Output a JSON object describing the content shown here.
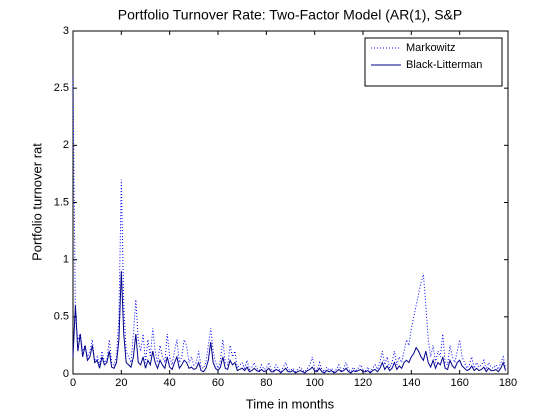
{
  "chart_data": {
    "type": "line",
    "title": "Portfolio Turnover Rate: Two-Factor Model (AR(1), S&P",
    "xlabel": "Time in months",
    "ylabel": "Portfolio turnover rat",
    "xlim": [
      0,
      180
    ],
    "xticks": [
      0,
      20,
      40,
      60,
      80,
      100,
      120,
      140,
      160,
      180
    ],
    "ylim": [
      0,
      3
    ],
    "yticks": [
      0,
      0.5,
      1,
      1.5,
      2,
      2.5,
      3
    ],
    "legend": "northeast",
    "x": [
      0,
      1,
      2,
      3,
      4,
      5,
      6,
      7,
      8,
      9,
      10,
      11,
      12,
      13,
      14,
      15,
      16,
      17,
      18,
      19,
      20,
      21,
      22,
      23,
      24,
      25,
      26,
      27,
      28,
      29,
      30,
      31,
      32,
      33,
      34,
      35,
      36,
      37,
      38,
      39,
      40,
      41,
      42,
      43,
      44,
      45,
      46,
      47,
      48,
      49,
      50,
      51,
      52,
      53,
      54,
      55,
      56,
      57,
      58,
      59,
      60,
      61,
      62,
      63,
      64,
      65,
      66,
      67,
      68,
      69,
      70,
      71,
      72,
      73,
      74,
      75,
      76,
      77,
      78,
      79,
      80,
      81,
      82,
      83,
      84,
      85,
      86,
      87,
      88,
      89,
      90,
      91,
      92,
      93,
      94,
      95,
      96,
      97,
      98,
      99,
      100,
      101,
      102,
      103,
      104,
      105,
      106,
      107,
      108,
      109,
      110,
      111,
      112,
      113,
      114,
      115,
      116,
      117,
      118,
      119,
      120,
      121,
      122,
      123,
      124,
      125,
      126,
      127,
      128,
      129,
      130,
      131,
      132,
      133,
      134,
      135,
      136,
      137,
      138,
      139,
      140,
      141,
      142,
      143,
      144,
      145,
      146,
      147,
      148,
      149,
      150,
      151,
      152,
      153,
      154,
      155,
      156,
      157,
      158,
      159,
      160,
      161,
      162,
      163,
      164,
      165,
      166,
      167,
      168,
      169,
      170,
      171,
      172,
      173,
      174,
      175,
      176,
      177,
      178,
      179
    ],
    "series": [
      {
        "name": "Markowitz",
        "color": "#0000ff",
        "style": "dotted",
        "values": [
          2.6,
          0.5,
          0.3,
          0.35,
          0.2,
          0.25,
          0.15,
          0.2,
          0.3,
          0.1,
          0.15,
          0.08,
          0.2,
          0.1,
          0.12,
          0.3,
          0.1,
          0.08,
          0.15,
          0.5,
          1.7,
          0.6,
          0.2,
          0.15,
          0.1,
          0.35,
          0.65,
          0.3,
          0.2,
          0.35,
          0.1,
          0.3,
          0.15,
          0.4,
          0.2,
          0.1,
          0.25,
          0.15,
          0.1,
          0.35,
          0.15,
          0.08,
          0.2,
          0.3,
          0.1,
          0.15,
          0.3,
          0.25,
          0.1,
          0.15,
          0.08,
          0.1,
          0.2,
          0.06,
          0.05,
          0.1,
          0.25,
          0.4,
          0.2,
          0.1,
          0.05,
          0.12,
          0.3,
          0.1,
          0.08,
          0.25,
          0.15,
          0.2,
          0.05,
          0.08,
          0.1,
          0.05,
          0.12,
          0.04,
          0.06,
          0.1,
          0.05,
          0.03,
          0.08,
          0.04,
          0.05,
          0.1,
          0.04,
          0.03,
          0.08,
          0.05,
          0.02,
          0.06,
          0.1,
          0.04,
          0.03,
          0.05,
          0.02,
          0.04,
          0.06,
          0.03,
          0.02,
          0.05,
          0.08,
          0.15,
          0.05,
          0.03,
          0.1,
          0.04,
          0.02,
          0.06,
          0.03,
          0.05,
          0.02,
          0.04,
          0.08,
          0.03,
          0.05,
          0.1,
          0.04,
          0.02,
          0.06,
          0.03,
          0.05,
          0.08,
          0.04,
          0.03,
          0.06,
          0.02,
          0.05,
          0.08,
          0.04,
          0.1,
          0.2,
          0.08,
          0.15,
          0.05,
          0.1,
          0.2,
          0.08,
          0.15,
          0.1,
          0.2,
          0.3,
          0.25,
          0.4,
          0.5,
          0.6,
          0.7,
          0.8,
          0.87,
          0.6,
          0.3,
          0.15,
          0.25,
          0.1,
          0.2,
          0.15,
          0.35,
          0.1,
          0.08,
          0.25,
          0.15,
          0.1,
          0.2,
          0.3,
          0.15,
          0.1,
          0.05,
          0.08,
          0.15,
          0.05,
          0.1,
          0.06,
          0.08,
          0.12,
          0.04,
          0.1,
          0.06,
          0.05,
          0.08,
          0.04,
          0.1,
          0.15,
          0.05
        ]
      },
      {
        "name": "Black-Litterman",
        "color": "#00008b",
        "style": "solid",
        "values": [
          0.15,
          0.6,
          0.2,
          0.35,
          0.15,
          0.25,
          0.12,
          0.15,
          0.25,
          0.1,
          0.12,
          0.05,
          0.15,
          0.08,
          0.1,
          0.2,
          0.06,
          0.05,
          0.1,
          0.3,
          0.9,
          0.35,
          0.1,
          0.08,
          0.06,
          0.15,
          0.35,
          0.1,
          0.08,
          0.15,
          0.05,
          0.12,
          0.08,
          0.2,
          0.1,
          0.05,
          0.12,
          0.08,
          0.05,
          0.15,
          0.06,
          0.04,
          0.1,
          0.15,
          0.05,
          0.08,
          0.12,
          0.1,
          0.05,
          0.06,
          0.04,
          0.05,
          0.1,
          0.03,
          0.02,
          0.05,
          0.12,
          0.28,
          0.1,
          0.05,
          0.03,
          0.06,
          0.15,
          0.05,
          0.04,
          0.12,
          0.08,
          0.1,
          0.03,
          0.04,
          0.05,
          0.03,
          0.06,
          0.02,
          0.03,
          0.05,
          0.03,
          0.02,
          0.04,
          0.02,
          0.03,
          0.05,
          0.02,
          0.02,
          0.04,
          0.03,
          0.01,
          0.03,
          0.05,
          0.02,
          0.02,
          0.03,
          0.01,
          0.02,
          0.03,
          0.02,
          0.01,
          0.03,
          0.04,
          0.06,
          0.03,
          0.02,
          0.05,
          0.02,
          0.01,
          0.03,
          0.02,
          0.03,
          0.01,
          0.02,
          0.04,
          0.02,
          0.03,
          0.05,
          0.02,
          0.01,
          0.03,
          0.02,
          0.03,
          0.04,
          0.02,
          0.02,
          0.03,
          0.01,
          0.03,
          0.04,
          0.02,
          0.05,
          0.1,
          0.04,
          0.07,
          0.03,
          0.05,
          0.1,
          0.04,
          0.07,
          0.05,
          0.1,
          0.12,
          0.1,
          0.15,
          0.18,
          0.23,
          0.2,
          0.15,
          0.12,
          0.2,
          0.1,
          0.06,
          0.12,
          0.05,
          0.1,
          0.08,
          0.15,
          0.05,
          0.04,
          0.12,
          0.07,
          0.05,
          0.1,
          0.12,
          0.07,
          0.05,
          0.03,
          0.04,
          0.07,
          0.03,
          0.05,
          0.03,
          0.04,
          0.06,
          0.02,
          0.05,
          0.03,
          0.03,
          0.04,
          0.02,
          0.05,
          0.1,
          0.03
        ]
      }
    ]
  }
}
